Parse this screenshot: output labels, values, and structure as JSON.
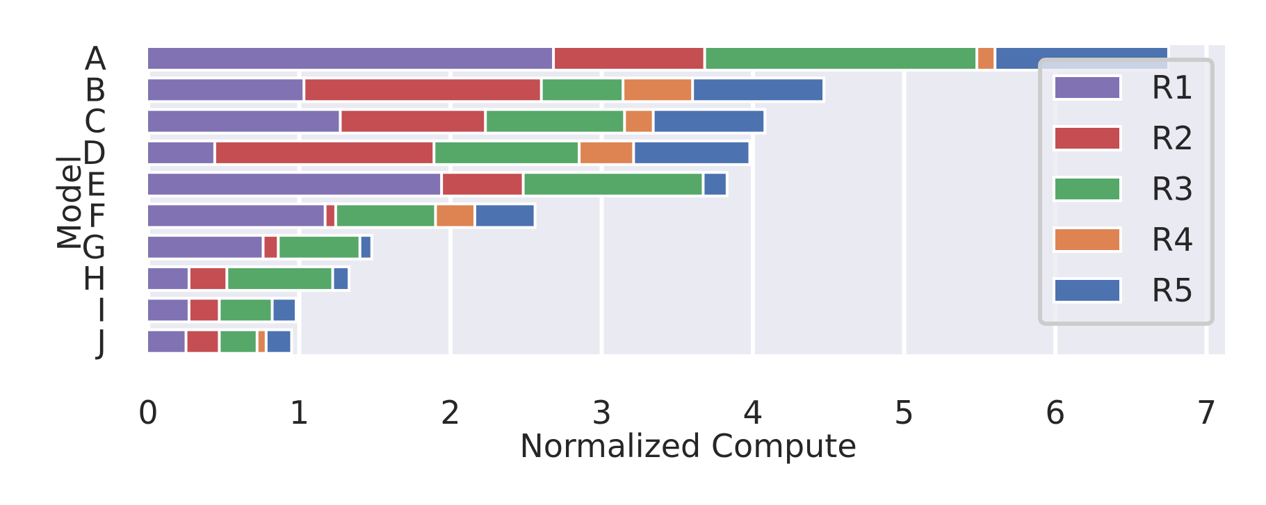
{
  "chart_data": {
    "type": "bar",
    "orientation": "horizontal",
    "stacked": true,
    "xlabel": "Normalized Compute",
    "ylabel": "Model",
    "xlim": [
      0,
      7.1
    ],
    "xticks": [
      "0",
      "1",
      "2",
      "3",
      "4",
      "5",
      "6",
      "7"
    ],
    "grid": true,
    "legend_position": "right",
    "categories": [
      "A",
      "B",
      "C",
      "D",
      "E",
      "F",
      "G",
      "H",
      "I",
      "J"
    ],
    "series": [
      {
        "name": "R1",
        "color": "#8172b3",
        "values": [
          2.69,
          1.04,
          1.28,
          0.45,
          1.95,
          1.18,
          0.77,
          0.28,
          0.28,
          0.26
        ]
      },
      {
        "name": "R2",
        "color": "#c44e52",
        "values": [
          1.0,
          1.57,
          0.96,
          1.45,
          0.54,
          0.07,
          0.1,
          0.25,
          0.2,
          0.22
        ]
      },
      {
        "name": "R3",
        "color": "#55a868",
        "values": [
          1.8,
          0.54,
          0.92,
          0.96,
          1.19,
          0.66,
          0.54,
          0.7,
          0.35,
          0.25
        ]
      },
      {
        "name": "R4",
        "color": "#dd8452",
        "values": [
          0.12,
          0.46,
          0.19,
          0.36,
          0,
          0.26,
          0,
          0,
          0,
          0.06
        ]
      },
      {
        "name": "R5",
        "color": "#4c72b0",
        "values": [
          1.13,
          0.85,
          0.72,
          0.75,
          0.14,
          0.38,
          0.06,
          0.09,
          0.14,
          0.15
        ]
      }
    ]
  }
}
